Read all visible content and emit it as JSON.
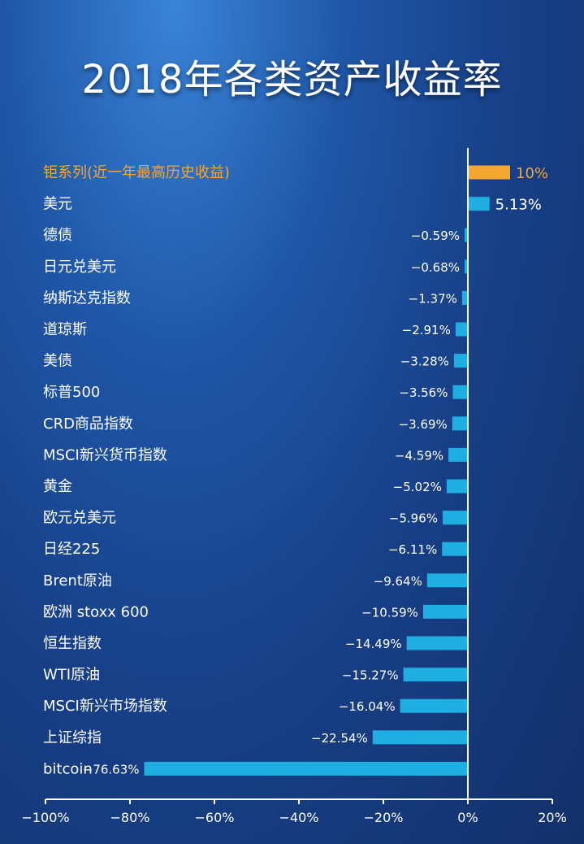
{
  "chart_data": {
    "type": "bar",
    "orientation": "horizontal",
    "title": "2018年各类资产收益率",
    "categories": [
      "钜系列(近一年最高历史收益)",
      "美元",
      "德债",
      "日元兑美元",
      "纳斯达克指数",
      "道琼斯",
      "美债",
      "标普500",
      "CRD商品指数",
      "MSCI新兴货币指数",
      "黄金",
      "欧元兑美元",
      "日经225",
      "Brent原油",
      "欧洲 stoxx 600",
      "恒生指数",
      "WTI原油",
      "MSCI新兴市场指数",
      "上证综指",
      "bitcoin"
    ],
    "values": [
      10,
      5.13,
      -0.59,
      -0.68,
      -1.37,
      -2.91,
      -3.28,
      -3.56,
      -3.69,
      -4.59,
      -5.02,
      -5.96,
      -6.11,
      -9.64,
      -10.59,
      -14.49,
      -15.27,
      -16.04,
      -22.54,
      -76.63
    ],
    "value_labels": [
      "10%",
      "5.13%",
      "−0.59%",
      "−0.68%",
      "−1.37%",
      "−2.91%",
      "−3.28%",
      "−3.56%",
      "−3.69%",
      "−4.59%",
      "−5.02%",
      "−5.96%",
      "−6.11%",
      "−9.64%",
      "−10.59%",
      "−14.49%",
      "−15.27%",
      "−16.04%",
      "−22.54%",
      "−76.63%"
    ],
    "highlight_index": 0,
    "xlim": [
      -100,
      20
    ],
    "x_ticks": [
      -100,
      -80,
      -60,
      -40,
      -20,
      0,
      20
    ],
    "x_tick_labels": [
      "−100%",
      "−80%",
      "−60%",
      "−40%",
      "−20%",
      "0%",
      "20%"
    ],
    "grid": false,
    "colors": {
      "bar": "#1eaee2",
      "highlight": "#f4a731",
      "axis": "#ffffff",
      "label": "#ffffff"
    }
  }
}
